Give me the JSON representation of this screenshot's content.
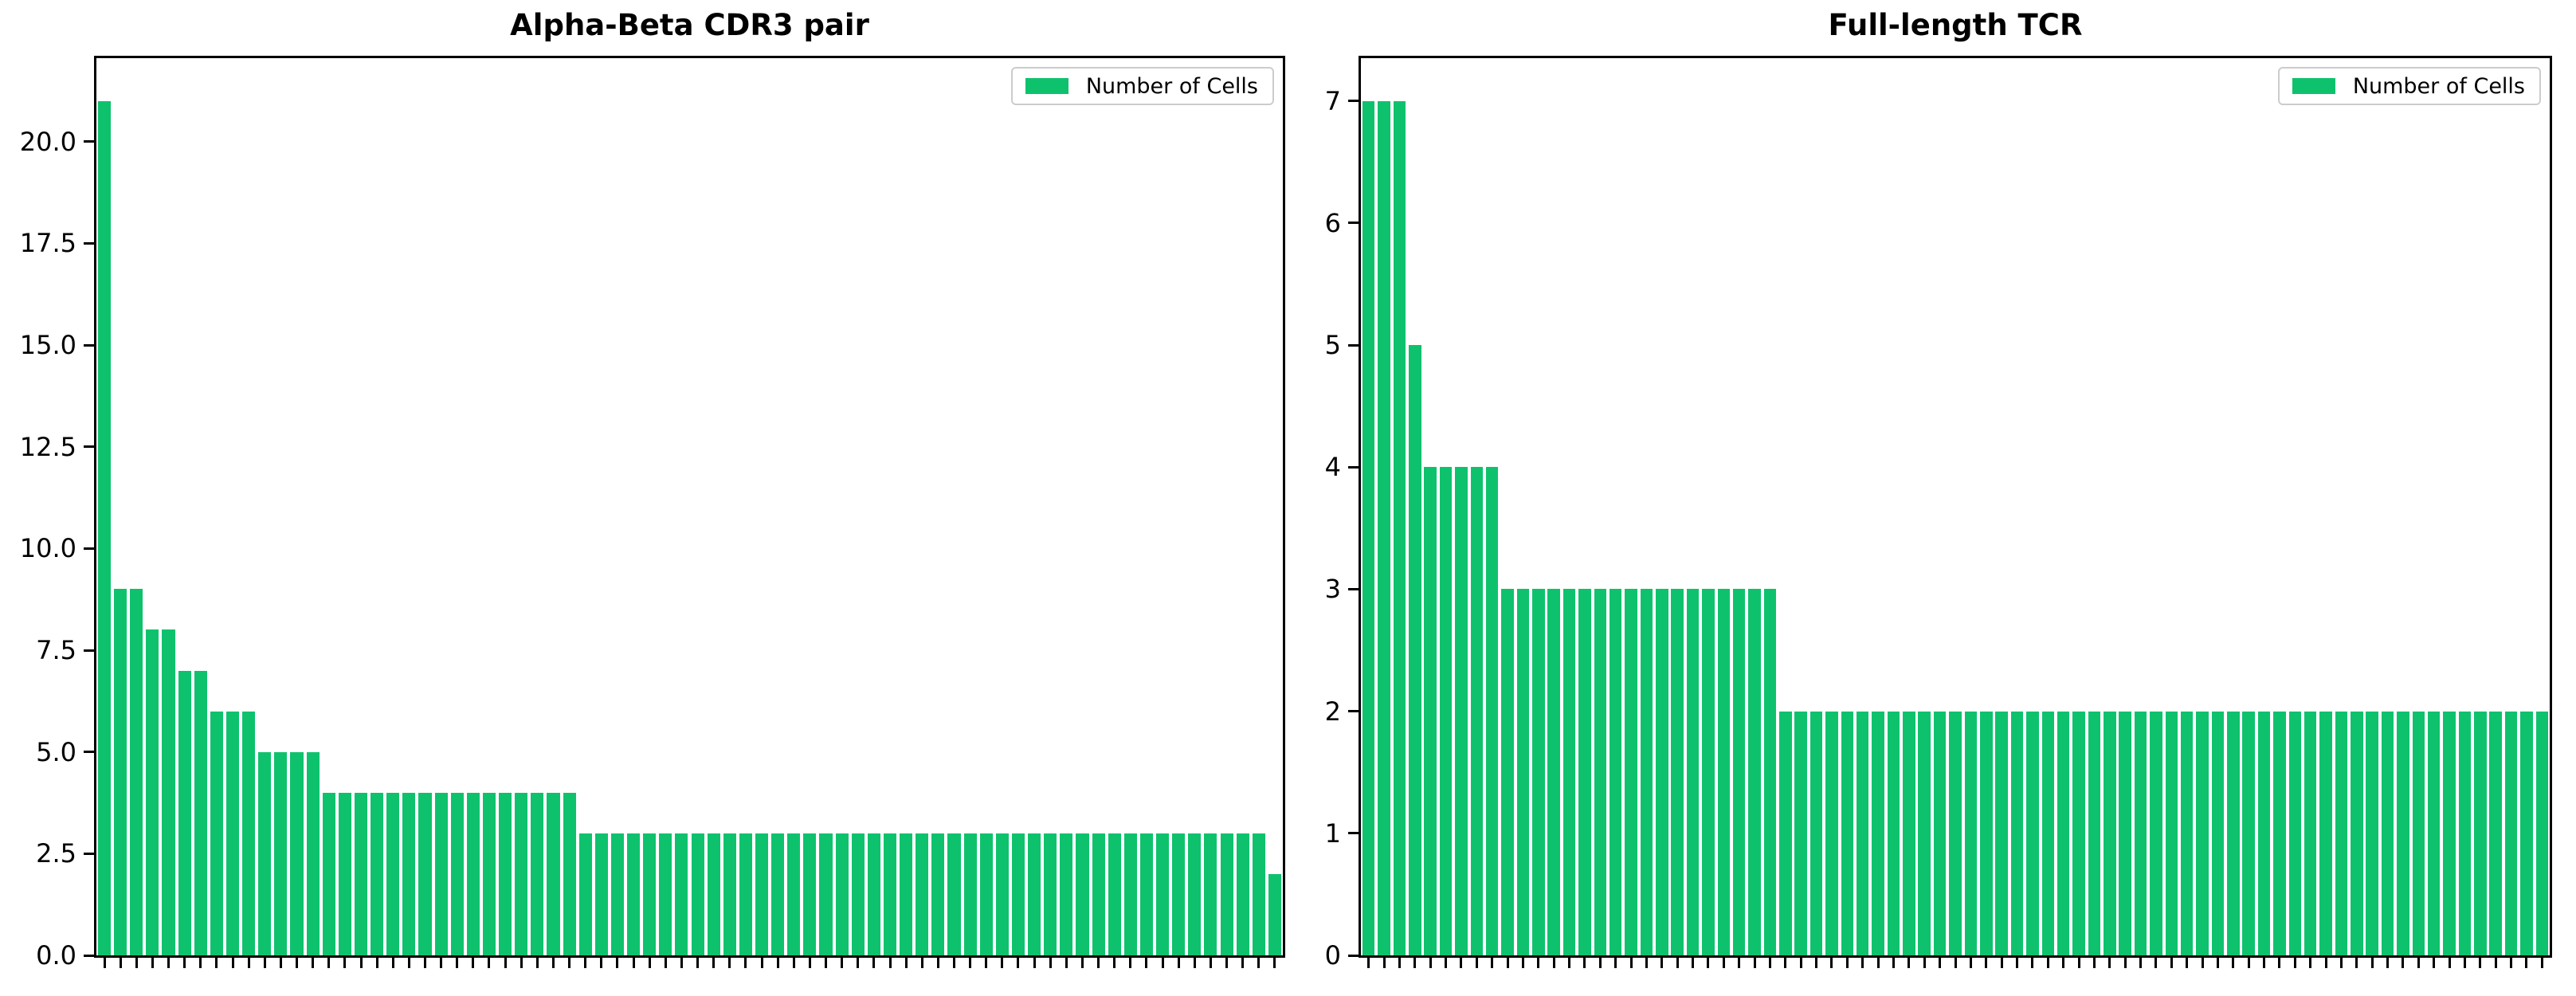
{
  "figure": {
    "background": "#ffffff"
  },
  "colors": {
    "bar": "#0ec26d",
    "spine": "#000000",
    "tick": "#000000",
    "text": "#000000",
    "legend_border": "#cccccc",
    "legend_background": "#ffffff"
  },
  "chart_data": [
    {
      "type": "bar",
      "title": "Alpha-Beta CDR3 pair",
      "legend": "Number of Cells",
      "legend_position": "upper right",
      "legend_swatch": "green-rect",
      "grid": false,
      "xlabel": "",
      "ylabel": "",
      "ylim": [
        0,
        22.05
      ],
      "y_ticks": [
        0,
        2.5,
        5,
        7.5,
        10,
        12.5,
        15,
        17.5,
        20
      ],
      "y_tick_labels": [
        "0.0",
        "2.5",
        "5.0",
        "7.5",
        "10.0",
        "12.5",
        "15.0",
        "17.5",
        "20.0"
      ],
      "x_tick_labels": [],
      "x_ticks_one_per_bar": true,
      "bar_count": 74,
      "values": [
        21,
        9,
        9,
        8,
        8,
        7,
        7,
        6,
        6,
        6,
        5,
        5,
        5,
        5,
        4,
        4,
        4,
        4,
        4,
        4,
        4,
        4,
        4,
        4,
        4,
        4,
        4,
        4,
        4,
        4,
        3,
        3,
        3,
        3,
        3,
        3,
        3,
        3,
        3,
        3,
        3,
        3,
        3,
        3,
        3,
        3,
        3,
        3,
        3,
        3,
        3,
        3,
        3,
        3,
        3,
        3,
        3,
        3,
        3,
        3,
        3,
        3,
        3,
        3,
        3,
        3,
        3,
        3,
        3,
        3,
        3,
        3,
        3,
        2
      ]
    },
    {
      "type": "bar",
      "title": "Full-length TCR",
      "legend": "Number of Cells",
      "legend_position": "upper right",
      "legend_swatch": "green-rect",
      "grid": false,
      "xlabel": "",
      "ylabel": "",
      "ylim": [
        0,
        7.35
      ],
      "y_ticks": [
        0,
        1,
        2,
        3,
        4,
        5,
        6,
        7
      ],
      "y_tick_labels": [
        "0",
        "1",
        "2",
        "3",
        "4",
        "5",
        "6",
        "7"
      ],
      "x_tick_labels": [],
      "x_ticks_one_per_bar": true,
      "bar_count": 77,
      "values": [
        7,
        7,
        7,
        5,
        4,
        4,
        4,
        4,
        4,
        3,
        3,
        3,
        3,
        3,
        3,
        3,
        3,
        3,
        3,
        3,
        3,
        3,
        3,
        3,
        3,
        3,
        3,
        2,
        2,
        2,
        2,
        2,
        2,
        2,
        2,
        2,
        2,
        2,
        2,
        2,
        2,
        2,
        2,
        2,
        2,
        2,
        2,
        2,
        2,
        2,
        2,
        2,
        2,
        2,
        2,
        2,
        2,
        2,
        2,
        2,
        2,
        2,
        2,
        2,
        2,
        2,
        2,
        2,
        2,
        2,
        2,
        2,
        2,
        2,
        2,
        2,
        2
      ]
    }
  ]
}
